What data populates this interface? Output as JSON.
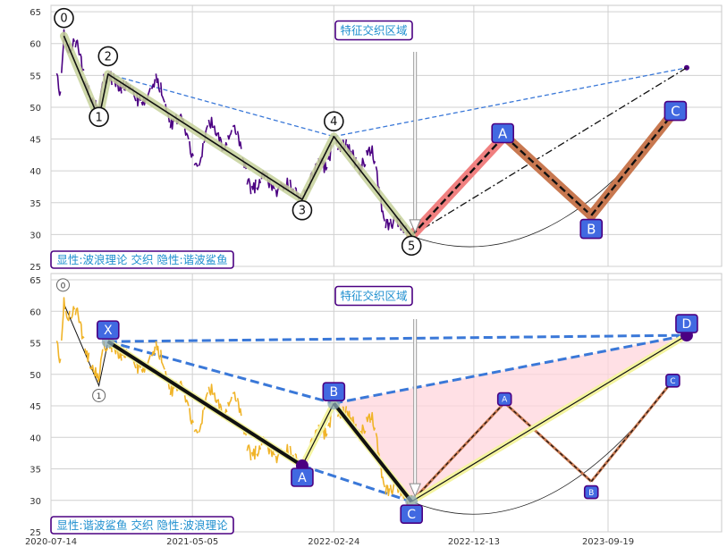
{
  "chart_data": [
    {
      "type": "line",
      "panel": "top",
      "ylim": [
        25,
        66
      ],
      "yticks": [
        25,
        30,
        35,
        40,
        45,
        50,
        55,
        60,
        65
      ],
      "colors": {
        "price": "#4b0082",
        "wave": "#111111",
        "wave_glow": "#c5d19a",
        "callout_border": "#4b0082",
        "callout_text": "#1f8fcf",
        "label_fill": "#4169e1",
        "red_leg": "#f08080",
        "brown_leg": "#c87850",
        "dashed_blue": "#3a78d8"
      },
      "caption": "显性:波浪理论 交织 隐性:谐波鲨鱼",
      "callout": "特征交织区域",
      "wave_points": [
        {
          "label": "0",
          "date": "2020-08-10",
          "value": 61.2
        },
        {
          "label": "1",
          "date": "2020-10-22",
          "value": 48.2
        },
        {
          "label": "2",
          "date": "2020-11-10",
          "value": 55.2
        },
        {
          "label": "3",
          "date": "2021-12-20",
          "value": 35.5
        },
        {
          "label": "4",
          "date": "2022-02-24",
          "value": 45.4
        },
        {
          "label": "5",
          "date": "2022-08-05",
          "value": 29.8
        }
      ],
      "forecast_points": [
        {
          "label": "A",
          "date": "2023-02-15",
          "value": 45.5
        },
        {
          "label": "B",
          "date": "2023-08-15",
          "value": 33.0
        },
        {
          "label": "C",
          "date": "2024-02-01",
          "value": 49.0
        }
      ],
      "target_point": {
        "date": "2024-03-01",
        "value": 56.2
      }
    },
    {
      "type": "line",
      "panel": "bottom",
      "ylim": [
        25,
        66
      ],
      "yticks": [
        25,
        30,
        35,
        40,
        45,
        50,
        55,
        60,
        65
      ],
      "xticks": [
        "2020-07-14",
        "2021-05-05",
        "2022-02-24",
        "2022-12-13",
        "2023-09-19"
      ],
      "colors": {
        "price": "#f0b429",
        "wave": "#111111",
        "wave_glow": "#f4f4a0",
        "callout_border": "#4b0082",
        "callout_text": "#1f8fcf",
        "label_fill": "#4169e1",
        "pink_area": "#ffd6dc",
        "dashed_blue": "#3a78d8"
      },
      "caption": "显性:谐波鲨鱼 交织 隐性:波浪理论",
      "callout": "特征交织区域",
      "small_points": [
        {
          "label": "0",
          "date": "2020-08-10",
          "value": 61.2
        },
        {
          "label": "1",
          "date": "2020-10-22",
          "value": 48.2
        }
      ],
      "harmonic_points": [
        {
          "label": "X",
          "date": "2020-11-10",
          "value": 55.2
        },
        {
          "label": "A",
          "date": "2021-12-20",
          "value": 35.5
        },
        {
          "label": "B",
          "date": "2022-02-24",
          "value": 45.4
        },
        {
          "label": "C",
          "date": "2022-08-05",
          "value": 29.8
        },
        {
          "label": "D",
          "date": "2024-03-01",
          "value": 56.2
        }
      ],
      "forecast_points": [
        {
          "label": "A",
          "date": "2023-02-15",
          "value": 45.5
        },
        {
          "label": "B",
          "date": "2023-08-15",
          "value": 33.0
        },
        {
          "label": "C",
          "date": "2024-02-01",
          "value": 49.0
        }
      ]
    }
  ]
}
